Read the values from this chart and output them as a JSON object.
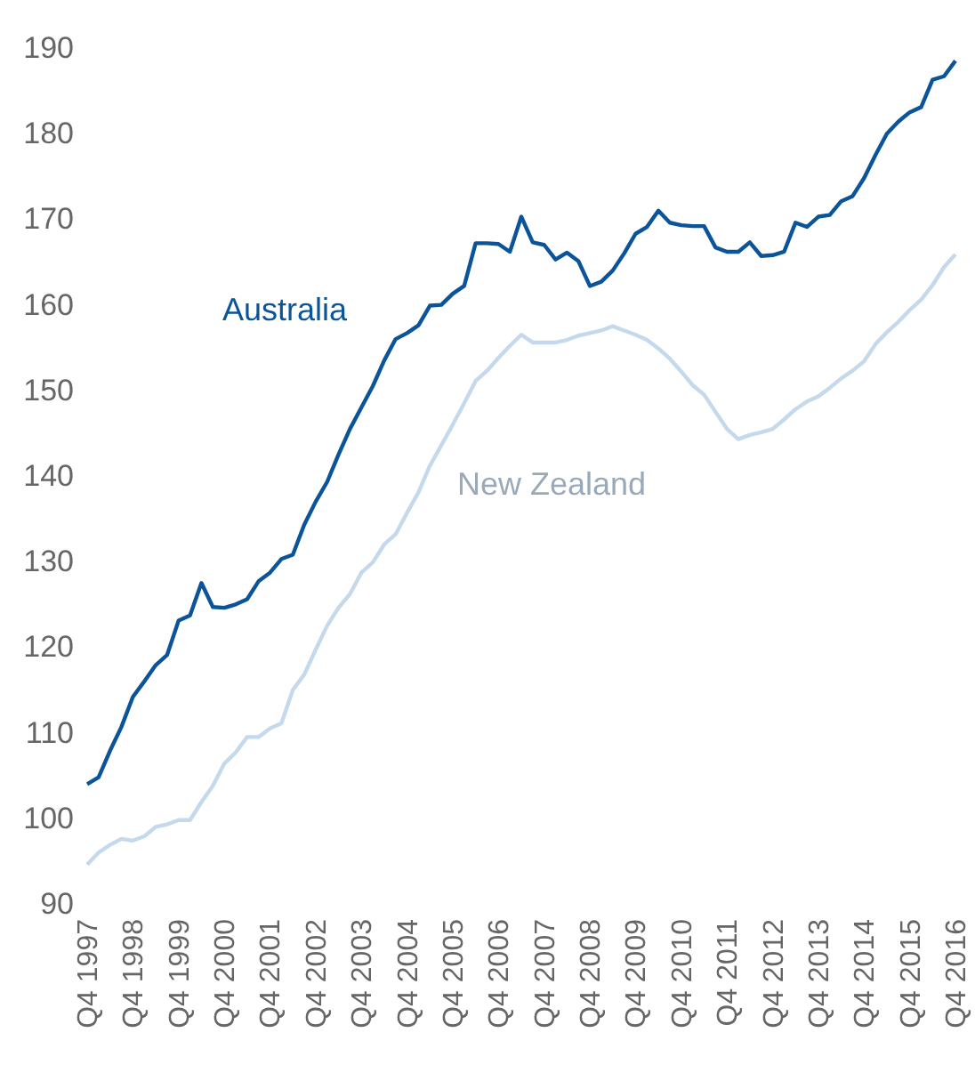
{
  "chart_data": {
    "type": "line",
    "categories": [
      "Q4 1997",
      null,
      null,
      null,
      "Q4 1998",
      null,
      null,
      null,
      "Q4 1999",
      null,
      null,
      null,
      "Q4 2000",
      null,
      null,
      null,
      "Q4 2001",
      null,
      null,
      null,
      "Q4 2002",
      null,
      null,
      null,
      "Q4 2003",
      null,
      null,
      null,
      "Q4 2004",
      null,
      null,
      null,
      "Q4 2005",
      null,
      null,
      null,
      "Q4 2006",
      null,
      null,
      null,
      "Q4 2007",
      null,
      null,
      null,
      "Q4 2008",
      null,
      null,
      null,
      "Q4 2009",
      null,
      null,
      null,
      "Q4 2010",
      null,
      null,
      null,
      "Q4 2011",
      null,
      null,
      null,
      "Q4 2012",
      null,
      null,
      null,
      "Q4 2013",
      null,
      null,
      null,
      "Q4 2014",
      null,
      null,
      null,
      "Q4 2015",
      null,
      null,
      null,
      "Q4 2016"
    ],
    "series": [
      {
        "name": "Australia",
        "color": "#0b5499",
        "values": [
          104,
          104.8,
          107.9,
          110.7,
          114.2,
          116,
          117.9,
          119.1,
          123.1,
          123.7,
          127.5,
          124.7,
          124.6,
          125,
          125.6,
          127.7,
          128.7,
          130.3,
          130.8,
          134.3,
          137,
          139.3,
          142.5,
          145.5,
          148,
          150.5,
          153.5,
          156,
          156.7,
          157.6,
          159.9,
          160,
          161.3,
          162.2,
          167.2,
          167.2,
          167.1,
          166.2,
          170.3,
          167.3,
          167,
          165.3,
          166.1,
          165.1,
          162.2,
          162.7,
          164,
          166,
          168.3,
          169.1,
          171,
          169.6,
          169.3,
          169.2,
          169.2,
          166.7,
          166.2,
          166.2,
          167.3,
          165.7,
          165.8,
          166.2,
          169.6,
          169.1,
          170.3,
          170.5,
          172.1,
          172.7,
          174.8,
          177.5,
          180,
          181.4,
          182.5,
          183.1,
          186.3,
          186.7,
          188.5
        ]
      },
      {
        "name": "New Zealand",
        "color": "#c5d9ec",
        "values": [
          94.6,
          96,
          96.9,
          97.6,
          97.4,
          97.9,
          99,
          99.3,
          99.8,
          99.8,
          101.9,
          103.8,
          106.4,
          107.7,
          109.5,
          109.5,
          110.5,
          111.1,
          115,
          116.8,
          119.7,
          122.5,
          124.6,
          126.2,
          128.7,
          129.9,
          132,
          133.2,
          135.7,
          138.1,
          141.2,
          143.6,
          146,
          148.5,
          151.1,
          152.3,
          153.8,
          155.2,
          156.5,
          155.6,
          155.6,
          155.6,
          155.9,
          156.4,
          156.7,
          157,
          157.5,
          157,
          156.5,
          155.9,
          154.9,
          153.7,
          152.2,
          150.6,
          149.5,
          147.5,
          145.5,
          144.3,
          144.8,
          145.1,
          145.5,
          146.6,
          147.8,
          148.7,
          149.3,
          150.3,
          151.4,
          152.3,
          153.4,
          155.4,
          156.8,
          158,
          159.4,
          160.6,
          162.3,
          164.4,
          165.9
        ]
      }
    ],
    "ylim": [
      90,
      190
    ],
    "yticks": [
      90,
      100,
      110,
      120,
      130,
      140,
      150,
      160,
      170,
      180,
      190
    ],
    "grid": false
  }
}
